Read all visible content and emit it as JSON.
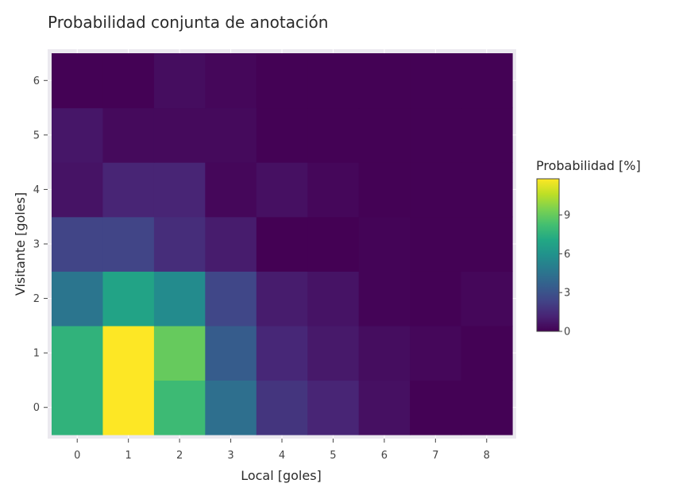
{
  "chart_data": {
    "type": "heatmap",
    "title": "Probabilidad conjunta de anotación",
    "xlabel": "Local [goles]",
    "ylabel": "Visitante [goles]",
    "x": [
      0,
      1,
      2,
      3,
      4,
      5,
      6,
      7,
      8
    ],
    "y": [
      0,
      1,
      2,
      3,
      4,
      5,
      6
    ],
    "x_tick_labels": [
      "0",
      "1",
      "2",
      "3",
      "4",
      "5",
      "6",
      "7",
      "8"
    ],
    "y_tick_labels": [
      "0",
      "1",
      "2",
      "3",
      "4",
      "5",
      "6"
    ],
    "z": [
      [
        7.6,
        11.8,
        8.0,
        4.3,
        1.8,
        1.2,
        0.5,
        0.05,
        0.05
      ],
      [
        7.6,
        11.8,
        9.0,
        3.4,
        1.3,
        0.8,
        0.4,
        0.2,
        0.05
      ],
      [
        4.6,
        6.8,
        5.6,
        2.5,
        0.9,
        0.6,
        0.1,
        0.05,
        0.2
      ],
      [
        2.4,
        2.4,
        1.5,
        0.9,
        0.0,
        0.0,
        0.1,
        0.05,
        0.05
      ],
      [
        0.6,
        1.2,
        1.2,
        0.2,
        0.5,
        0.2,
        0.05,
        0.05,
        0.05
      ],
      [
        0.7,
        0.3,
        0.3,
        0.3,
        0.05,
        0.05,
        0.05,
        0.05,
        0.05
      ],
      [
        0.05,
        0.05,
        0.4,
        0.2,
        0.05,
        0.05,
        0.05,
        0.05,
        0.05
      ]
    ],
    "colorscale": "Viridis",
    "colorbar": {
      "title": "Probabilidad [%]",
      "range": [
        0,
        11.8
      ],
      "tickvals": [
        0,
        3,
        6,
        9
      ],
      "ticktext": [
        "0",
        "3",
        "6",
        "9"
      ]
    },
    "grid": true,
    "background_color": "#ebe9ef"
  }
}
